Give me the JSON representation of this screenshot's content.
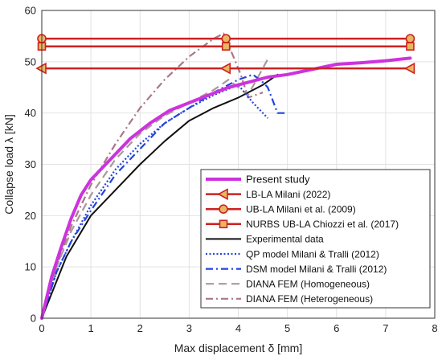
{
  "chart_data": {
    "type": "line",
    "xlabel": "Max displacement δ [mm]",
    "ylabel": "Collapse load λ [kN]",
    "xlim": [
      0,
      8
    ],
    "ylim": [
      0,
      60
    ],
    "xticks": [
      "0",
      "1",
      "2",
      "3",
      "4",
      "5",
      "6",
      "7",
      "8"
    ],
    "yticks": [
      "0",
      "10",
      "20",
      "30",
      "40",
      "50",
      "60"
    ],
    "grid": true,
    "legend_position": "bottom-right",
    "series": [
      {
        "name": "Present study",
        "color": "#cc33dd",
        "style": "solid-thick",
        "x": [
          0,
          0.2,
          0.4,
          0.6,
          0.8,
          1.0,
          1.4,
          1.8,
          2.2,
          2.6,
          3.0,
          3.4,
          3.8,
          4.2,
          4.6,
          5.0,
          5.5,
          6.0,
          6.5,
          7.0,
          7.5
        ],
        "y": [
          0,
          8,
          14,
          19.5,
          24,
          27,
          31,
          35,
          38,
          40.5,
          42,
          43.5,
          45,
          46,
          47,
          47.5,
          48.5,
          49.5,
          49.8,
          50.2,
          50.7
        ]
      },
      {
        "name": "LB-LA Milani (2022)",
        "color": "#cc2222",
        "marker": "triangle-left",
        "x": [
          0,
          3.75,
          7.5
        ],
        "y": [
          48.7,
          48.7,
          48.7
        ]
      },
      {
        "name": "UB-LA Milani et al. (2009)",
        "color": "#cc2222",
        "marker": "circle",
        "x": [
          0,
          3.75,
          7.5
        ],
        "y": [
          54.5,
          54.5,
          54.5
        ]
      },
      {
        "name": "NURBS UB-LA Chiozzi et al. (2017)",
        "color": "#cc2222",
        "marker": "square",
        "x": [
          0,
          3.75,
          7.5
        ],
        "y": [
          53,
          53,
          53
        ]
      },
      {
        "name": "Experimental data",
        "color": "#111111",
        "style": "solid",
        "x": [
          0,
          0.5,
          1.0,
          1.5,
          2.0,
          2.5,
          3.0,
          3.5,
          4.0,
          4.5,
          4.8
        ],
        "y": [
          0,
          12,
          20,
          25,
          30,
          34.5,
          38.5,
          41,
          43,
          45.5,
          47.5
        ]
      },
      {
        "name": "QP model Milani & Tralli (2012)",
        "color": "#2244dd",
        "style": "dotted",
        "x": [
          0,
          0.3,
          0.6,
          1.0,
          1.5,
          2.0,
          2.5,
          3.0,
          3.5,
          4.0,
          4.3,
          4.6
        ],
        "y": [
          0,
          9,
          15,
          22,
          29,
          34,
          38,
          41,
          43.5,
          45.5,
          42,
          39
        ]
      },
      {
        "name": "DSM model Milani & Tralli (2012)",
        "color": "#2244dd",
        "style": "dashdot",
        "x": [
          0,
          0.3,
          0.6,
          1.0,
          1.5,
          2.0,
          2.5,
          3.0,
          3.5,
          4.0,
          4.3,
          4.5,
          4.6,
          4.8,
          4.95
        ],
        "y": [
          0,
          9,
          15,
          21,
          28,
          33,
          38,
          41,
          44,
          46.5,
          47.5,
          46,
          45,
          40,
          40
        ]
      },
      {
        "name": "DIANA FEM (Homogeneous)",
        "color": "#aa9999",
        "style": "dashed",
        "x": [
          0,
          0.3,
          0.6,
          1.0,
          1.5,
          2.0,
          2.5,
          3.0,
          3.5,
          3.8,
          4.0,
          4.2,
          4.4,
          4.6
        ],
        "y": [
          0,
          10,
          17,
          24,
          31,
          36,
          39.5,
          42,
          44.5,
          46.5,
          45,
          43.5,
          47,
          50.5
        ]
      },
      {
        "name": "DIANA FEM (Heterogeneous)",
        "color": "#aa7788",
        "style": "dashdot",
        "x": [
          0,
          0.3,
          0.6,
          1.0,
          1.5,
          2.0,
          2.5,
          3.0,
          3.5,
          3.7,
          3.9,
          4.05,
          4.2,
          4.5
        ],
        "y": [
          0,
          10,
          18,
          26,
          34,
          41,
          46.5,
          51,
          54.5,
          55.5,
          51,
          47.5,
          43,
          44
        ]
      }
    ]
  }
}
